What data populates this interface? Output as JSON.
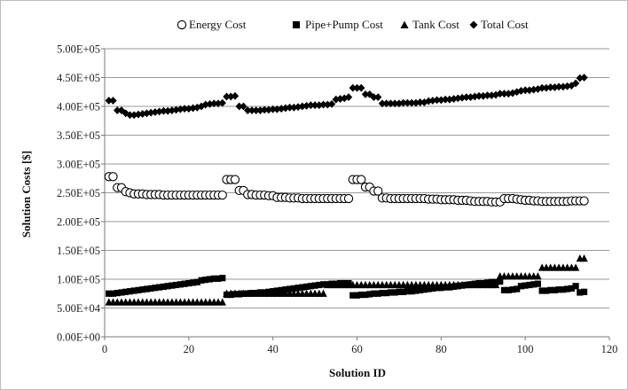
{
  "chart_data": {
    "type": "scatter",
    "title": "",
    "xlabel": "Solution ID",
    "ylabel": "Solution Costs [$]",
    "xlim": [
      0,
      120
    ],
    "ylim": [
      0,
      500000
    ],
    "x_ticks": [
      "0",
      "20",
      "40",
      "60",
      "80",
      "100",
      "120"
    ],
    "y_ticks": [
      "0.00E+00",
      "5.00E+04",
      "1.00E+05",
      "1.50E+05",
      "2.00E+05",
      "2.50E+05",
      "3.00E+05",
      "3.50E+05",
      "4.00E+05",
      "4.50E+05",
      "5.00E+05"
    ],
    "grid": "horizontal",
    "legend_position": "top",
    "series": [
      {
        "name": "Energy Cost",
        "marker": "open-circle",
        "segments": [
          {
            "x_start": 1,
            "values": [
              278000,
              278000,
              259000,
              259000,
              252000,
              250000,
              248000,
              248000,
              248000,
              247000,
              247000,
              247000,
              247000,
              246000,
              246000,
              246000,
              246000,
              246000,
              246000,
              246000,
              246000,
              246000,
              246000,
              246000,
              246000,
              246000,
              246000,
              246000
            ]
          },
          {
            "x_start": 29,
            "values": [
              273000,
              273000,
              273000,
              254000,
              254000,
              247000,
              247000,
              246000,
              246000,
              246000,
              245000,
              245000,
              242000,
              242000,
              242000,
              241000,
              241000,
              241000,
              240000,
              240000,
              240000,
              240000,
              240000,
              240000,
              240000,
              240000,
              240000,
              240000,
              240000,
              240000
            ]
          },
          {
            "x_start": 59,
            "values": [
              273000,
              273000,
              273000,
              260000,
              260000,
              253000,
              253000,
              241000,
              241000,
              240000,
              240000,
              240000,
              240000,
              240000,
              240000,
              240000,
              240000,
              240000,
              239000,
              239000,
              239000,
              238000,
              238000,
              238000,
              238000,
              237000,
              237000,
              237000,
              236000,
              235000,
              235000,
              235000,
              235000,
              234000,
              234000,
              234000
            ]
          },
          {
            "x_start": 95,
            "values": [
              240000,
              240000,
              240000,
              239000,
              238000,
              237000,
              237000,
              236000,
              236000,
              235000,
              235000,
              235000,
              235000,
              235000,
              235000,
              235000,
              236000,
              236000,
              236000,
              236000
            ]
          }
        ]
      },
      {
        "name": "Pipe+Pump Cost",
        "marker": "square",
        "segments": [
          {
            "x_start": 1,
            "values": [
              75000,
              75000,
              76000,
              77000,
              78000,
              79000,
              80000,
              81000,
              82000,
              83000,
              84000,
              85000,
              86000,
              87000,
              88000,
              89000,
              90000,
              91000,
              92000,
              93000,
              94000,
              95000,
              98000,
              99000,
              100000,
              101000,
              101000,
              102000
            ]
          },
          {
            "x_start": 29,
            "values": [
              73000,
              73000,
              74000,
              74000,
              75000,
              75000,
              76000,
              76000,
              77000,
              77000,
              78000,
              79000,
              80000,
              81000,
              82000,
              83000,
              84000,
              85000,
              86000,
              87000,
              88000,
              89000,
              90000,
              91000,
              91000,
              92000,
              92000,
              93000,
              93000,
              93000
            ]
          },
          {
            "x_start": 59,
            "values": [
              72000,
              72000,
              73000,
              73000,
              74000,
              75000,
              75000,
              76000,
              76000,
              77000,
              77000,
              78000,
              78000,
              79000,
              79000,
              80000,
              81000,
              82000,
              83000,
              84000,
              85000,
              85000,
              86000,
              86000,
              87000,
              88000,
              89000,
              90000,
              91000,
              92000,
              93000,
              93000,
              94000,
              95000,
              95000,
              96000
            ]
          },
          {
            "x_start": 95,
            "values": [
              81000,
              81000,
              82000,
              83000,
              88000,
              89000,
              90000,
              91000,
              92000,
              80000,
              80000,
              81000,
              81000,
              82000,
              82000,
              83000,
              84000,
              88000,
              77000,
              78000
            ]
          }
        ]
      },
      {
        "name": "Tank Cost",
        "marker": "triangle",
        "segments": [
          {
            "x_start": 1,
            "values": [
              60000,
              60000,
              60000,
              60000,
              60000,
              60000,
              60000,
              60000,
              60000,
              60000,
              60000,
              60000,
              60000,
              60000,
              60000,
              60000,
              60000,
              60000,
              60000,
              60000,
              60000,
              60000,
              60000,
              60000,
              60000,
              60000,
              60000,
              60000
            ]
          },
          {
            "x_start": 29,
            "values": [
              75000,
              75000,
              75000,
              75000,
              75000,
              75000,
              75000,
              75000,
              75000,
              75000,
              75000,
              75000,
              75000,
              75000,
              75000,
              75000,
              75000,
              75000,
              75000,
              75000,
              75000,
              75000,
              75000,
              75000,
              90000,
              90000,
              90000,
              90000,
              90000,
              90000
            ]
          },
          {
            "x_start": 59,
            "values": [
              90000,
              90000,
              90000,
              90000,
              90000,
              90000,
              90000,
              90000,
              90000,
              90000,
              90000,
              90000,
              90000,
              90000,
              90000,
              90000,
              90000,
              90000,
              90000,
              90000,
              90000,
              90000,
              90000,
              90000,
              90000,
              90000,
              90000,
              90000,
              90000,
              90000,
              90000,
              90000,
              90000,
              90000,
              90000,
              105000
            ]
          },
          {
            "x_start": 95,
            "values": [
              105000,
              105000,
              105000,
              105000,
              105000,
              105000,
              105000,
              105000,
              105000,
              120000,
              120000,
              120000,
              120000,
              120000,
              120000,
              120000,
              120000,
              120000,
              136000,
              136000
            ]
          }
        ]
      },
      {
        "name": "Total Cost",
        "marker": "diamond",
        "segments": [
          {
            "x_start": 1,
            "values": [
              410000,
              410000,
              393000,
              393000,
              388000,
              385000,
              385000,
              386000,
              387000,
              388000,
              389000,
              390000,
              391000,
              392000,
              392000,
              393000,
              394000,
              395000,
              396000,
              396000,
              397000,
              398000,
              400000,
              403000,
              404000,
              405000,
              405000,
              406000
            ]
          },
          {
            "x_start": 29,
            "values": [
              417000,
              417000,
              418000,
              400000,
              400000,
              393000,
              393000,
              393000,
              393000,
              394000,
              394000,
              395000,
              395000,
              396000,
              397000,
              398000,
              398000,
              399000,
              400000,
              401000,
              402000,
              402000,
              402000,
              403000,
              403000,
              404000,
              412000,
              413000,
              414000,
              416000
            ]
          },
          {
            "x_start": 59,
            "values": [
              432000,
              432000,
              432000,
              421000,
              421000,
              416000,
              416000,
              405000,
              405000,
              405000,
              405000,
              405000,
              406000,
              406000,
              406000,
              406000,
              407000,
              407000,
              409000,
              410000,
              411000,
              411000,
              412000,
              412000,
              413000,
              414000,
              415000,
              416000,
              416000,
              417000,
              418000,
              418000,
              419000,
              419000,
              420000,
              422000
            ]
          },
          {
            "x_start": 95,
            "values": [
              422000,
              422000,
              423000,
              425000,
              427000,
              428000,
              428000,
              429000,
              430000,
              432000,
              432000,
              433000,
              433000,
              434000,
              434000,
              435000,
              436000,
              440000,
              449000,
              450000
            ]
          }
        ]
      }
    ]
  }
}
